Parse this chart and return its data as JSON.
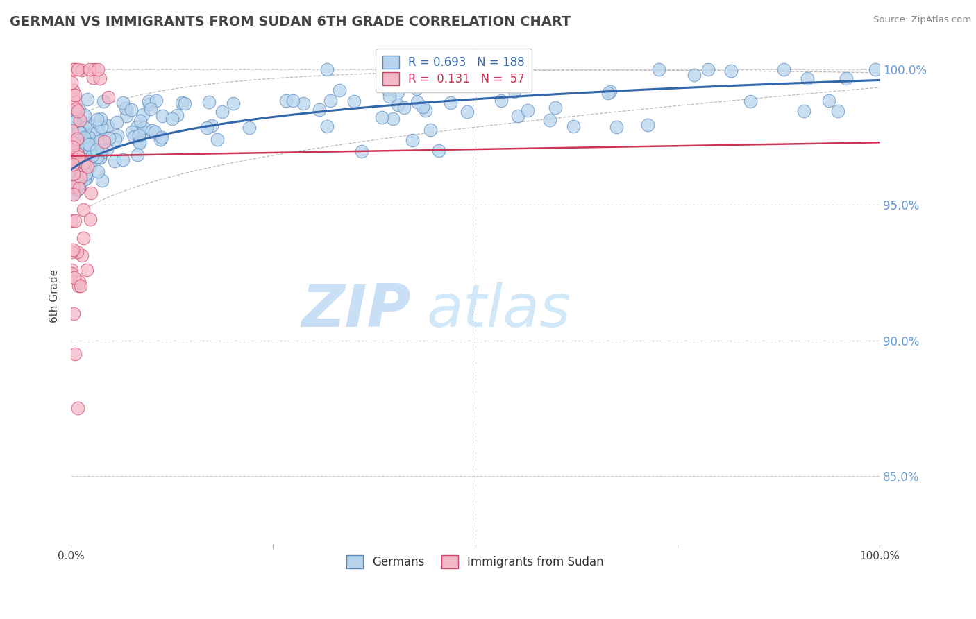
{
  "title": "GERMAN VS IMMIGRANTS FROM SUDAN 6TH GRADE CORRELATION CHART",
  "source": "Source: ZipAtlas.com",
  "ylabel": "6th Grade",
  "watermark_zip": "ZIP",
  "watermark_atlas": "atlas",
  "legend_german": "Germans",
  "legend_sudan": "Immigrants from Sudan",
  "R_german": 0.693,
  "N_german": 188,
  "R_sudan": 0.131,
  "N_sudan": 57,
  "color_german": "#b8d4ed",
  "color_sudan": "#f5b8c8",
  "edge_color_german": "#5588bb",
  "edge_color_sudan": "#cc4466",
  "line_color_german": "#3366aa",
  "line_color_sudan": "#cc3355",
  "conf_color": "#bbbbbb",
  "background_color": "#ffffff",
  "grid_color": "#cccccc",
  "title_color": "#444444",
  "right_axis_color": "#6699cc",
  "watermark_color": "#ddeeff",
  "xlim": [
    0.0,
    1.0
  ],
  "ylim": [
    0.825,
    1.008
  ],
  "yticks": [
    0.85,
    0.9,
    0.95,
    1.0
  ],
  "ytick_labels": [
    "85.0%",
    "90.0%",
    "95.0%",
    "100.0%"
  ]
}
